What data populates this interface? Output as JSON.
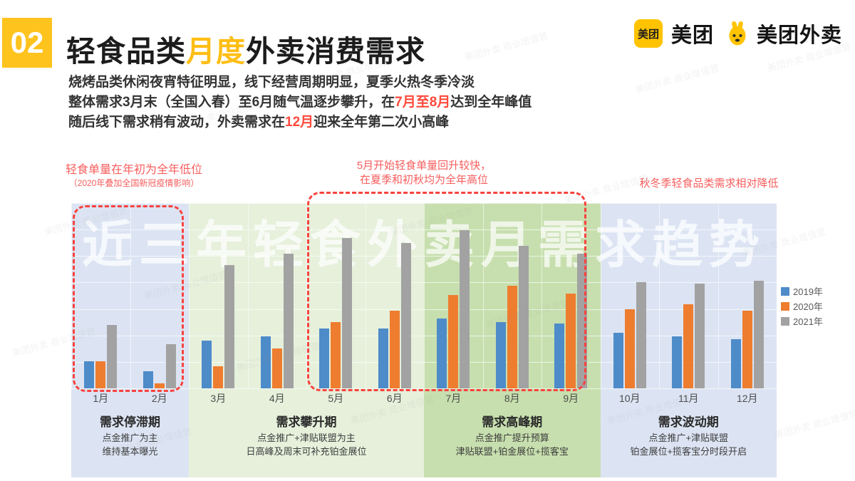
{
  "page": {
    "badge": "02",
    "title": {
      "pre": "轻食品类",
      "highlight": "月度",
      "post": "外卖消费需求"
    },
    "body": {
      "line1": "烧烤品类休闲夜宵特征明显，线下经营周期明显，夏季火热冬季冷淡",
      "line2_pre": "整体需求3月末（全国入春）至6月随气温逐步攀升，在",
      "line2_red": "7月至8月",
      "line2_post": "达到全年峰值",
      "line3_pre": "随后线下需求稍有波动，外卖需求在",
      "line3_red": "12月",
      "line3_post": "迎来全年第二次小高峰"
    },
    "faint_watermark_text": "美团外卖 商业增值营"
  },
  "logos": {
    "meituan_icon_text": "美团",
    "meituan_wordmark": "美团",
    "waimai_wordmark": "美团外卖"
  },
  "annotations": [
    {
      "line1": "轻食单量在年初为全年低位",
      "line2": "（2020年叠加全国新冠疫情影响）"
    },
    {
      "line1": "5月开始轻食单量回升较快，",
      "line2": "在夏季和初秋均为全年高位"
    },
    {
      "line1": "秋冬季轻食品类需求相对降低",
      "line2": ""
    }
  ],
  "chart_data": {
    "type": "bar",
    "title_watermark": "近三年轻食外卖月需求趋势",
    "categories": [
      "1月",
      "2月",
      "3月",
      "4月",
      "5月",
      "6月",
      "7月",
      "8月",
      "9月",
      "10月",
      "11月",
      "12月"
    ],
    "series": [
      {
        "name": "2019年",
        "color": "#4E8BC9",
        "values": [
          17,
          11,
          30,
          33,
          38,
          38,
          44,
          42,
          41,
          35,
          33,
          31
        ]
      },
      {
        "name": "2020年",
        "color": "#EE7D2F",
        "values": [
          17,
          3,
          14,
          25,
          42,
          49,
          59,
          65,
          60,
          50,
          53,
          49
        ]
      },
      {
        "name": "2021年",
        "color": "#A2A2A2",
        "values": [
          40,
          28,
          78,
          85,
          95,
          92,
          100,
          90,
          85,
          67,
          66,
          68
        ]
      }
    ],
    "ylim": [
      0,
      117
    ],
    "value_axis_hidden": true,
    "grid": true,
    "legend_position": "right",
    "background_bands": [
      {
        "months": "1月-2月",
        "color": "#DCE4F3",
        "span": [
          0,
          2
        ]
      },
      {
        "months": "3月-6月",
        "color": "#E6F0DB",
        "span": [
          2,
          6
        ]
      },
      {
        "months": "7月-9月",
        "color": "#C7DFAE",
        "span": [
          6,
          9
        ]
      },
      {
        "months": "10月-12月",
        "color": "#DCE4F3",
        "span": [
          9,
          12
        ]
      }
    ]
  },
  "periods": [
    {
      "title": "需求停滞期",
      "lines": [
        "点金推广为主",
        "维持基本曝光"
      ]
    },
    {
      "title": "需求攀升期",
      "lines": [
        "点金推广+津贴联盟为主",
        "日高峰及周末可补充铂金展位"
      ]
    },
    {
      "title": "需求高峰期",
      "lines": [
        "点金推广提升预算",
        "津贴联盟+铂金展位+揽客宝"
      ]
    },
    {
      "title": "需求波动期",
      "lines": [
        "点金推广+津贴联盟",
        "铂金展位+揽客宝分时段开启"
      ]
    }
  ]
}
